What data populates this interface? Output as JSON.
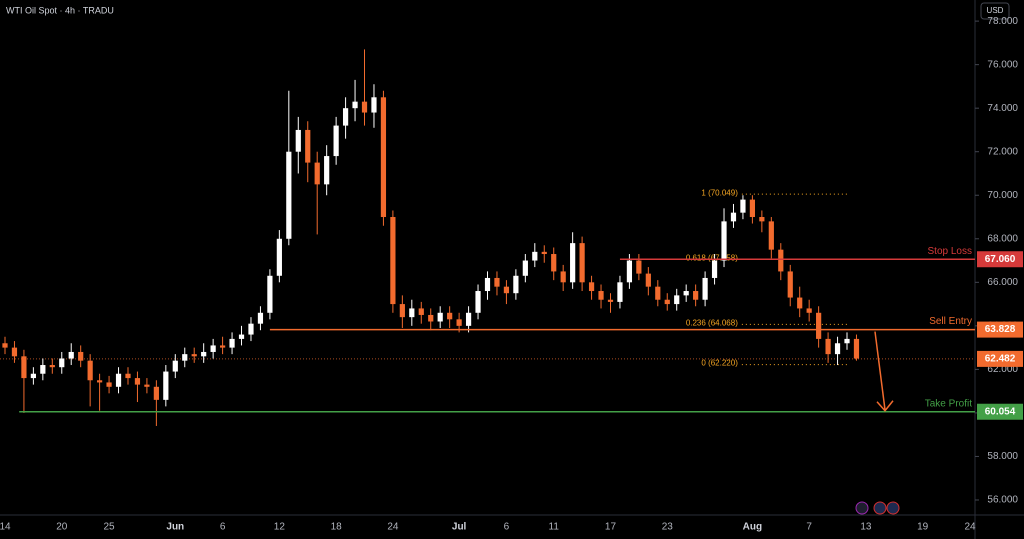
{
  "chart_data": {
    "type": "candlestick",
    "title": "WTI Oil Spot · 4h · TRADU",
    "currency": "USD",
    "categories": [
      "14",
      null,
      null,
      null,
      null,
      null,
      "20",
      null,
      null,
      null,
      null,
      "25",
      null,
      null,
      null,
      null,
      null,
      null,
      "Jun",
      null,
      null,
      null,
      null,
      "6",
      null,
      null,
      null,
      null,
      null,
      "12",
      null,
      null,
      null,
      null,
      null,
      "18",
      null,
      null,
      null,
      null,
      null,
      "24",
      null,
      null,
      null,
      null,
      null,
      null,
      "Jul",
      null,
      null,
      null,
      null,
      "6",
      null,
      null,
      null,
      null,
      "11",
      null,
      null,
      null,
      null,
      null,
      "17",
      null,
      null,
      null,
      null,
      null,
      "23",
      null,
      null,
      null,
      null,
      null,
      null,
      null,
      null,
      "Aug",
      null,
      null,
      null,
      null,
      null,
      "7",
      null,
      null,
      null,
      null,
      null,
      "13",
      null,
      null,
      null,
      null,
      null,
      "19",
      null,
      null,
      null,
      null,
      "24"
    ],
    "open": [
      63.2,
      63.0,
      62.6,
      61.6,
      61.8,
      62.2,
      62.1,
      62.5,
      62.8,
      62.4,
      61.5,
      61.4,
      61.2,
      61.8,
      61.6,
      61.3,
      61.2,
      60.6,
      61.9,
      62.4,
      62.7,
      62.6,
      62.8,
      63.1,
      63.0,
      63.4,
      63.6,
      64.1,
      64.6,
      66.3,
      68.0,
      72.0,
      73.0,
      71.5,
      70.5,
      71.8,
      73.2,
      74.0,
      74.3,
      73.8,
      74.5,
      69.0,
      65.0,
      64.4,
      64.8,
      64.5,
      64.2,
      64.6,
      64.3,
      64.0,
      64.6,
      65.6,
      66.2,
      65.8,
      65.5,
      66.3,
      67.0,
      67.4,
      67.3,
      66.5,
      66.0,
      67.8,
      66.0,
      65.6,
      65.2,
      65.1,
      66.0,
      67.0,
      66.4,
      65.8,
      65.2,
      65.0,
      65.4,
      65.6,
      65.2,
      66.2,
      67.0,
      68.8,
      69.2,
      69.8,
      69.0,
      68.8,
      67.5,
      66.5,
      65.3,
      64.8,
      64.6,
      63.4,
      62.7,
      63.2,
      63.4,
      null,
      null,
      null,
      null,
      null,
      null,
      null,
      null,
      null,
      null,
      null,
      null
    ],
    "high": [
      63.5,
      63.3,
      62.9,
      62.1,
      62.5,
      62.5,
      62.8,
      63.2,
      63.1,
      62.7,
      61.8,
      61.7,
      62.1,
      62.1,
      61.9,
      61.6,
      61.5,
      62.2,
      62.7,
      63.0,
      63.0,
      63.2,
      63.4,
      63.5,
      63.7,
      64.0,
      64.4,
      64.9,
      66.6,
      68.4,
      74.8,
      73.6,
      73.4,
      72.0,
      72.3,
      73.6,
      74.5,
      75.3,
      76.7,
      75.1,
      74.8,
      69.3,
      65.4,
      65.2,
      65.1,
      64.8,
      64.9,
      64.9,
      64.6,
      64.9,
      65.9,
      66.5,
      66.5,
      66.1,
      66.6,
      67.3,
      67.8,
      67.7,
      67.6,
      66.8,
      68.3,
      68.1,
      66.3,
      65.9,
      65.5,
      66.3,
      67.3,
      67.3,
      66.7,
      66.1,
      65.5,
      65.7,
      65.9,
      65.9,
      66.5,
      67.3,
      69.4,
      69.6,
      70.0,
      70.0,
      69.3,
      69.0,
      67.8,
      66.8,
      65.8,
      65.2,
      64.9,
      63.7,
      63.5,
      63.7,
      63.6,
      null,
      null,
      null,
      null,
      null,
      null,
      null,
      null,
      null,
      null,
      null,
      null
    ],
    "low": [
      62.7,
      62.3,
      60.0,
      61.3,
      61.5,
      61.8,
      61.8,
      62.2,
      62.1,
      60.3,
      60.1,
      60.9,
      60.9,
      61.3,
      60.5,
      60.9,
      59.4,
      60.3,
      61.6,
      62.1,
      62.3,
      62.3,
      62.5,
      62.7,
      62.7,
      63.1,
      63.3,
      63.8,
      64.3,
      66.0,
      67.7,
      71.0,
      70.6,
      68.2,
      70.0,
      71.4,
      72.6,
      73.4,
      73.2,
      73.1,
      68.6,
      64.6,
      63.9,
      64.0,
      64.1,
      63.8,
      63.9,
      63.9,
      63.7,
      63.7,
      64.3,
      65.2,
      65.4,
      65.0,
      65.2,
      66.0,
      66.7,
      66.9,
      66.1,
      65.6,
      65.7,
      65.6,
      65.2,
      64.8,
      64.6,
      64.8,
      65.7,
      66.1,
      65.4,
      64.9,
      64.7,
      64.7,
      65.1,
      64.9,
      64.9,
      65.9,
      66.7,
      68.5,
      68.9,
      68.7,
      68.3,
      67.1,
      66.1,
      64.9,
      64.4,
      64.2,
      63.0,
      62.3,
      62.2,
      62.9,
      62.4,
      null,
      null,
      null,
      null,
      null,
      null,
      null,
      null,
      null,
      null,
      null,
      null
    ],
    "close": [
      63.0,
      62.6,
      61.6,
      61.8,
      62.2,
      62.1,
      62.5,
      62.8,
      62.4,
      61.5,
      61.4,
      61.2,
      61.8,
      61.6,
      61.3,
      61.2,
      60.6,
      61.9,
      62.4,
      62.7,
      62.6,
      62.8,
      63.1,
      63.0,
      63.4,
      63.6,
      64.1,
      64.6,
      66.3,
      68.0,
      72.0,
      73.0,
      71.5,
      70.5,
      71.8,
      73.2,
      74.0,
      74.3,
      73.8,
      74.5,
      69.0,
      65.0,
      64.4,
      64.8,
      64.5,
      64.2,
      64.6,
      64.3,
      64.0,
      64.6,
      65.6,
      66.2,
      65.8,
      65.5,
      66.3,
      67.0,
      67.4,
      67.3,
      66.5,
      66.0,
      67.8,
      66.0,
      65.6,
      65.2,
      65.1,
      66.0,
      67.0,
      66.4,
      65.8,
      65.2,
      65.0,
      65.4,
      65.6,
      65.2,
      66.2,
      67.0,
      68.8,
      69.2,
      69.8,
      69.0,
      68.8,
      67.5,
      66.5,
      65.3,
      64.8,
      64.6,
      63.4,
      62.7,
      63.2,
      63.4,
      62.5,
      null,
      null,
      null,
      null,
      null,
      null,
      null,
      null,
      null,
      null,
      null,
      null
    ],
    "up_color": "#ffffff",
    "down_color": "#f26b2e",
    "ylim": [
      55.31,
      78.97
    ],
    "yticks": [
      {
        "value": 56,
        "label": "56.000"
      },
      {
        "value": 58,
        "label": "58.000"
      },
      {
        "value": 60,
        "label": "60.000"
      },
      {
        "value": 62,
        "label": "62.000"
      },
      {
        "value": 64,
        "label": "64.000"
      },
      {
        "value": 66,
        "label": "66.000"
      },
      {
        "value": 68,
        "label": "68.000"
      },
      {
        "value": 70,
        "label": "70.000"
      },
      {
        "value": 72,
        "label": "72.000"
      },
      {
        "value": 74,
        "label": "74.000"
      },
      {
        "value": 76,
        "label": "76.000"
      },
      {
        "value": 78,
        "label": "78.000"
      }
    ],
    "levels": [
      {
        "name": "Stop Loss",
        "value": 67.06,
        "value_label": "67.060",
        "color": "#d63a3a"
      },
      {
        "name": "Sell Entry",
        "value": 63.828,
        "value_label": "63.828",
        "color": "#f26b2e"
      },
      {
        "name": "Take Profit",
        "value": 60.054,
        "value_label": "60.054",
        "color": "#43a047"
      }
    ],
    "current_price": {
      "value": 62.482,
      "label": "62.482",
      "color": "#f26b2e"
    },
    "fib_levels": [
      {
        "label": "1 (70.049)",
        "value": 70.049
      },
      {
        "label": "0.618 (67.058)",
        "value": 67.058
      },
      {
        "label": "0.236 (64.068)",
        "value": 64.068
      },
      {
        "label": "0 (62.220)",
        "value": 62.22
      }
    ],
    "fib_color": "#f5a623"
  }
}
